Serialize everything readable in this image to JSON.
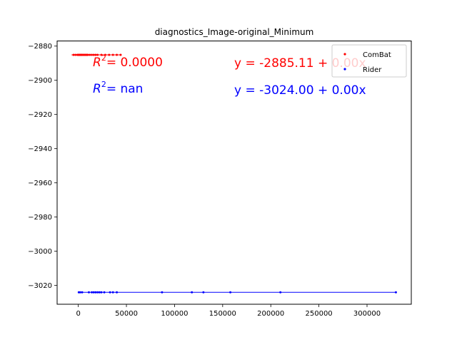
{
  "chart_data": {
    "type": "scatter",
    "title": "diagnostics_Image-original_Minimum",
    "xlabel": "",
    "ylabel": "",
    "xlim": [
      -22000,
      346000
    ],
    "ylim": [
      -3031,
      -2877
    ],
    "x_ticks": [
      0,
      50000,
      100000,
      150000,
      200000,
      250000,
      300000
    ],
    "x_tick_labels": [
      "0",
      "50000",
      "100000",
      "150000",
      "200000",
      "250000",
      "300000"
    ],
    "y_ticks": [
      -2880,
      -2900,
      -2920,
      -2940,
      -2960,
      -2980,
      -3000,
      -3020
    ],
    "y_tick_labels": [
      "−2880",
      "−2900",
      "−2920",
      "−2940",
      "−2960",
      "−2980",
      "−3000",
      "−3020"
    ],
    "legend_position": "top-right",
    "series": [
      {
        "name": "ComBat",
        "color": "#ff0000",
        "x": [
          -5000,
          -3000,
          -1000,
          0,
          500,
          1000,
          1500,
          2000,
          2500,
          3000,
          3500,
          4000,
          5000,
          6000,
          7000,
          8000,
          9000,
          10000,
          12000,
          14000,
          16000,
          18000,
          20000,
          24000,
          28000,
          32000,
          36000,
          40000,
          44000
        ],
        "y": [
          -2885.11,
          -2885.11,
          -2885.11,
          -2885.11,
          -2885.11,
          -2885.11,
          -2885.11,
          -2885.11,
          -2885.11,
          -2885.11,
          -2885.11,
          -2885.11,
          -2885.11,
          -2885.11,
          -2885.11,
          -2885.11,
          -2885.11,
          -2885.11,
          -2885.11,
          -2885.11,
          -2885.11,
          -2885.11,
          -2885.11,
          -2885.11,
          -2885.11,
          -2885.11,
          -2885.11,
          -2885.11,
          -2885.11
        ],
        "fit": {
          "intercept": -2885.11,
          "slope": 0.0,
          "x_range": [
            -7000,
            44000
          ]
        }
      },
      {
        "name": "Rider",
        "color": "#0000ff",
        "x": [
          500,
          2000,
          4000,
          11000,
          14000,
          16000,
          18000,
          20000,
          22000,
          24000,
          27000,
          33000,
          36000,
          40000,
          87000,
          118000,
          130000,
          158000,
          210000,
          330000
        ],
        "y": [
          -3024,
          -3024,
          -3024,
          -3024,
          -3024,
          -3024,
          -3024,
          -3024,
          -3024,
          -3024,
          -3024,
          -3024,
          -3024,
          -3024,
          -3024,
          -3024,
          -3024,
          -3024,
          -3024,
          -3024
        ],
        "fit": {
          "intercept": -3024.0,
          "slope": 0.0,
          "x_range": [
            500,
            330000
          ]
        }
      }
    ],
    "annotations": [
      {
        "series": "ComBat",
        "r2_label": "R",
        "r2_value": "= 0.0000",
        "equation": "y = -2885.11 + 0.00x",
        "color": "#ff0000"
      },
      {
        "series": "Rider",
        "r2_label": "R",
        "r2_value": "= nan",
        "equation": "y = -3024.00 + 0.00x",
        "color": "#0000ff"
      }
    ]
  }
}
